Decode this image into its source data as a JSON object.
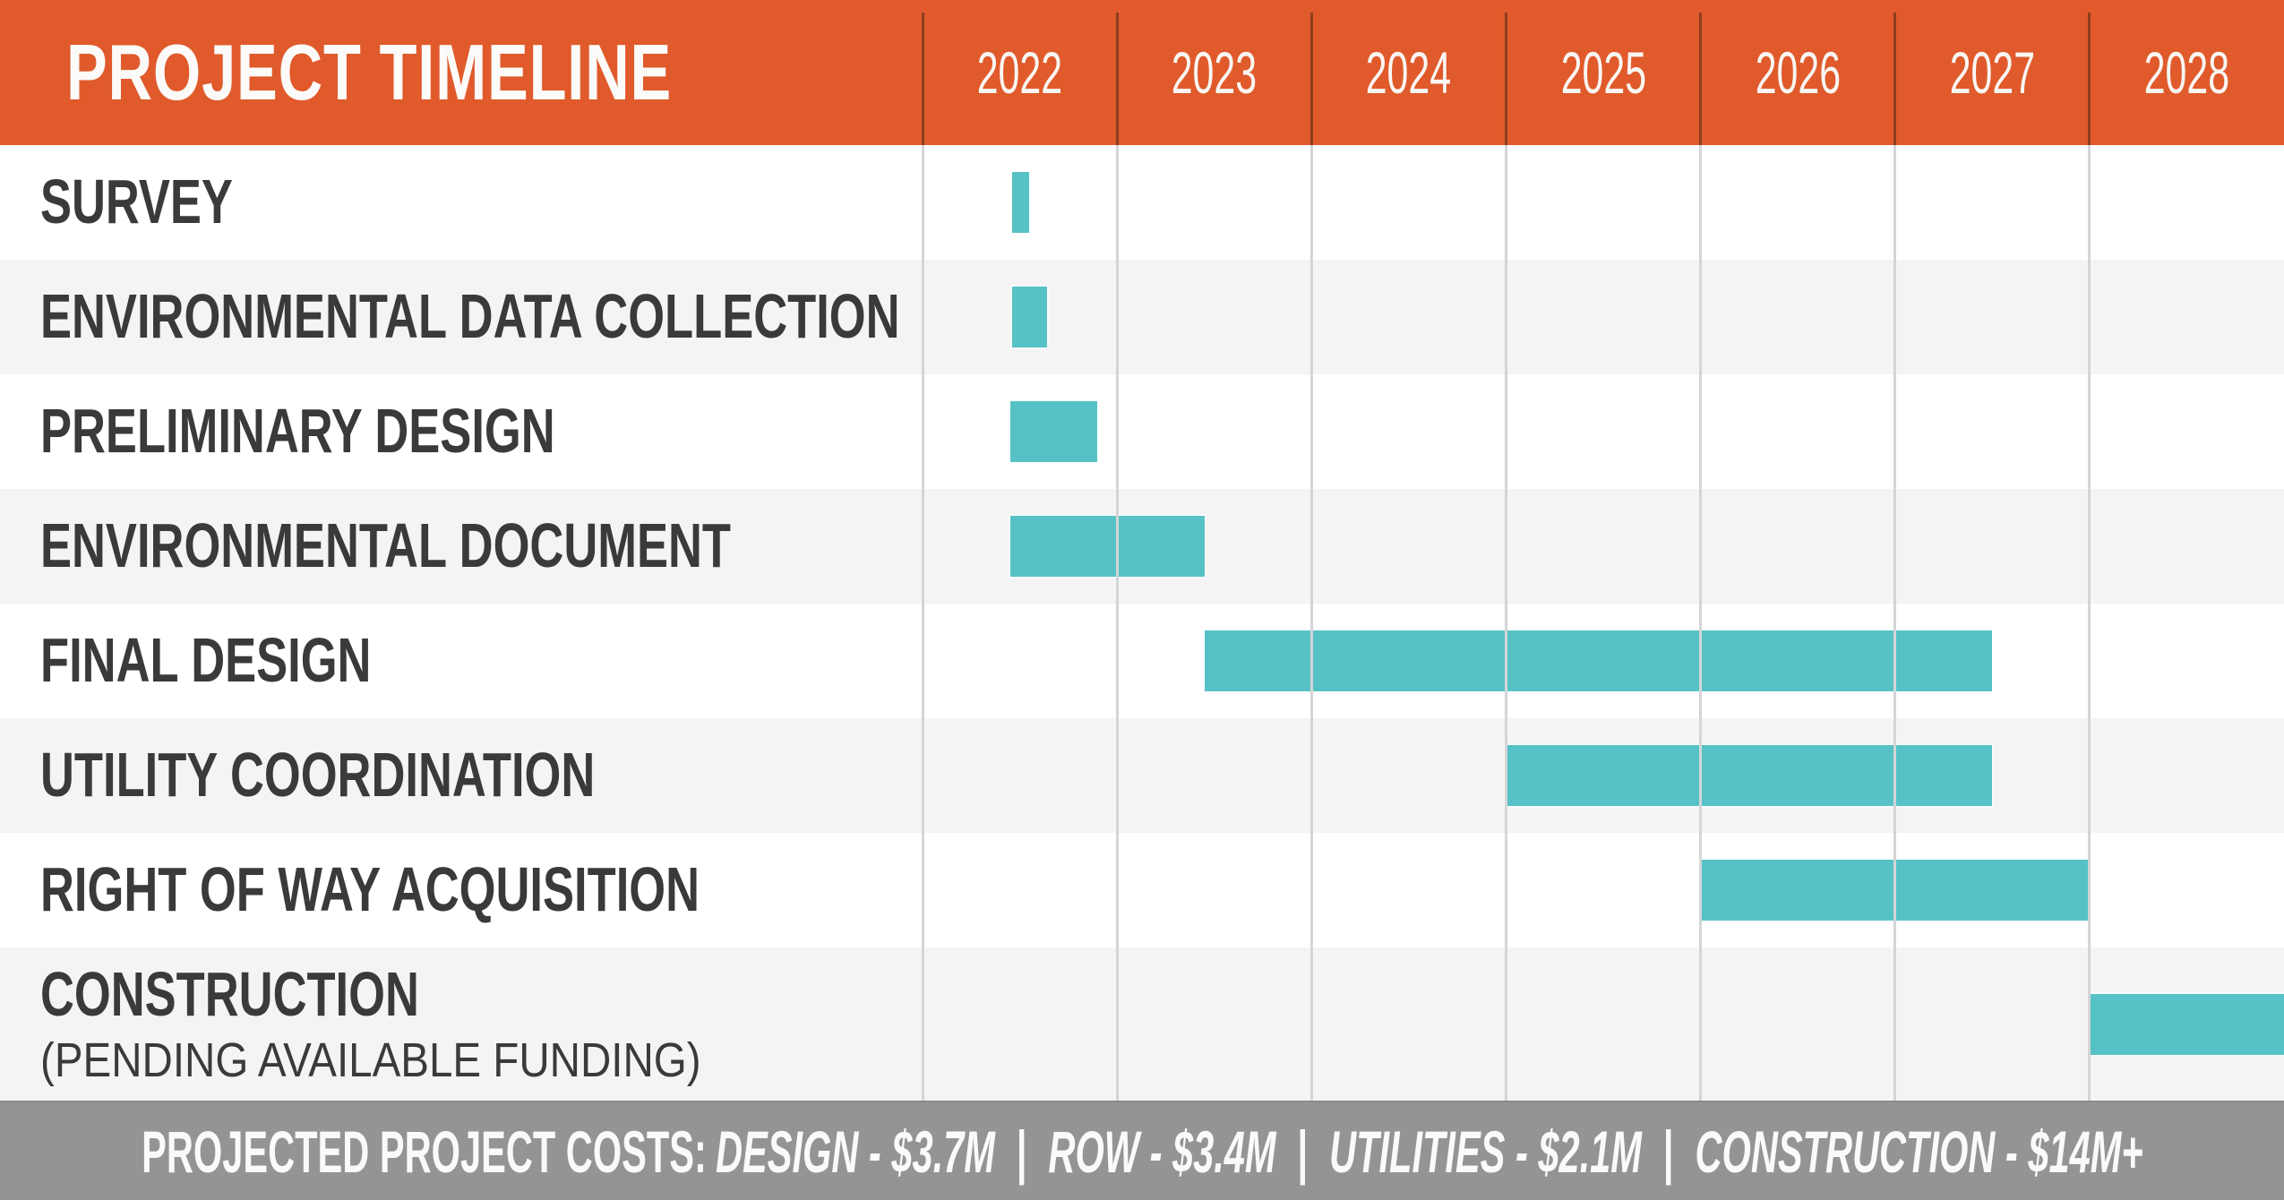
{
  "header": {
    "title": "PROJECT TIMELINE",
    "years": [
      "2022",
      "2023",
      "2024",
      "2025",
      "2026",
      "2027",
      "2028"
    ]
  },
  "colors": {
    "accent_orange": "#E05A2B",
    "bar_teal": "#57C2C6",
    "row_alt_gray": "#F4F4F6",
    "footer_gray": "#949494",
    "text_dark": "#3A3A3C"
  },
  "gantt": {
    "rows": [
      {
        "label": "SURVEY",
        "sublabel": "",
        "start": 2022.46,
        "end": 2022.55
      },
      {
        "label": "ENVIRONMENTAL DATA COLLECTION",
        "sublabel": "",
        "start": 2022.46,
        "end": 2022.64
      },
      {
        "label": "PRELIMINARY DESIGN",
        "sublabel": "",
        "start": 2022.45,
        "end": 2022.9
      },
      {
        "label": "ENVIRONMENTAL DOCUMENT",
        "sublabel": "",
        "start": 2022.45,
        "end": 2023.45
      },
      {
        "label": "FINAL DESIGN",
        "sublabel": "",
        "start": 2023.45,
        "end": 2027.5
      },
      {
        "label": "UTILITY COORDINATION",
        "sublabel": "",
        "start": 2025.0,
        "end": 2027.5
      },
      {
        "label": "RIGHT OF WAY ACQUISITION",
        "sublabel": "",
        "start": 2026.0,
        "end": 2028.0
      },
      {
        "label": "CONSTRUCTION",
        "sublabel": "(PENDING AVAILABLE FUNDING)",
        "start": 2028.0,
        "end": 2029.0
      }
    ]
  },
  "footer": {
    "prefix": "PROJECTED PROJECT COSTS:",
    "separator": "|",
    "segments": [
      "DESIGN - $3.7M",
      "ROW - $3.4M",
      "UTILITIES - $2.1M",
      "CONSTRUCTION - $14M+"
    ]
  },
  "chart_data": {
    "type": "bar",
    "subtype": "gantt",
    "title": "PROJECT TIMELINE",
    "x_axis": {
      "unit": "year",
      "tick_labels": [
        "2022",
        "2023",
        "2024",
        "2025",
        "2026",
        "2027",
        "2028"
      ],
      "range": [
        2022,
        2029
      ],
      "grid": "vertical-year-lines"
    },
    "categories": [
      "SURVEY",
      "ENVIRONMENTAL DATA COLLECTION",
      "PRELIMINARY DESIGN",
      "ENVIRONMENTAL DOCUMENT",
      "FINAL DESIGN",
      "UTILITY COORDINATION",
      "RIGHT OF WAY ACQUISITION",
      "CONSTRUCTION (PENDING AVAILABLE FUNDING)"
    ],
    "tasks": [
      {
        "name": "SURVEY",
        "start": 2022.46,
        "end": 2022.55
      },
      {
        "name": "ENVIRONMENTAL DATA COLLECTION",
        "start": 2022.46,
        "end": 2022.64
      },
      {
        "name": "PRELIMINARY DESIGN",
        "start": 2022.45,
        "end": 2022.9
      },
      {
        "name": "ENVIRONMENTAL DOCUMENT",
        "start": 2022.45,
        "end": 2023.45
      },
      {
        "name": "FINAL DESIGN",
        "start": 2023.45,
        "end": 2027.5
      },
      {
        "name": "UTILITY COORDINATION",
        "start": 2025.0,
        "end": 2027.5
      },
      {
        "name": "RIGHT OF WAY ACQUISITION",
        "start": 2026.0,
        "end": 2028.0
      },
      {
        "name": "CONSTRUCTION (PENDING AVAILABLE FUNDING)",
        "start": 2028.0,
        "end": 2029.0,
        "note": "bar runs to right edge of chart"
      }
    ],
    "legend": false,
    "annotations": [
      "PROJECTED PROJECT COSTS: DESIGN - $3.7M | ROW - $3.4M | UTILITIES - $2.1M | CONSTRUCTION - $14M+"
    ]
  }
}
